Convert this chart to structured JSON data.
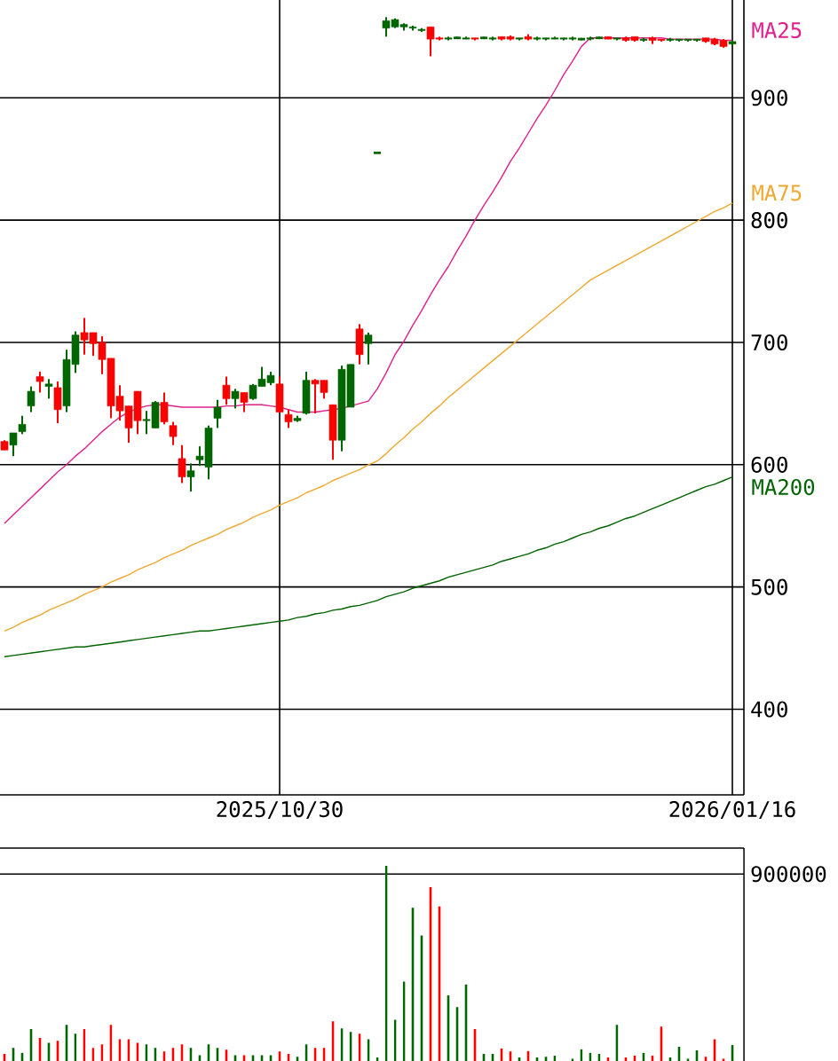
{
  "chart_data": [
    {
      "type": "candlestick",
      "categories": [
        null,
        null,
        null,
        null,
        null,
        null,
        null,
        null,
        null,
        null,
        null,
        null,
        null,
        null,
        null,
        null,
        null,
        null,
        null,
        null,
        null,
        null,
        null,
        null,
        null,
        null,
        null,
        null,
        null,
        null,
        null,
        "2025/10/30",
        null,
        null,
        null,
        null,
        null,
        null,
        null,
        null,
        null,
        null,
        null,
        null,
        null,
        null,
        null,
        null,
        null,
        null,
        null,
        null,
        null,
        null,
        null,
        null,
        null,
        null,
        null,
        null,
        null,
        null,
        null,
        null,
        null,
        null,
        null,
        null,
        null,
        null,
        null,
        null,
        null,
        null,
        null,
        null,
        null,
        null,
        null,
        null,
        null,
        null,
        "2026/01/16"
      ],
      "ohlc": [
        [
          619,
          620,
          612,
          612
        ],
        [
          616,
          626,
          607,
          626
        ],
        [
          627,
          640,
          625,
          633
        ],
        [
          648,
          664,
          643,
          660
        ],
        [
          672,
          676,
          659,
          668
        ],
        [
          664,
          670,
          654,
          666
        ],
        [
          663,
          668,
          634,
          645
        ],
        [
          648,
          694,
          643,
          686
        ],
        [
          682,
          709,
          675,
          706
        ],
        [
          708,
          720,
          690,
          702
        ],
        [
          708,
          708,
          689,
          699
        ],
        [
          700,
          705,
          674,
          686
        ],
        [
          687,
          687,
          638,
          648
        ],
        [
          656,
          665,
          636,
          644
        ],
        [
          648,
          648,
          618,
          630
        ],
        [
          660,
          660,
          625,
          636
        ],
        [
          636,
          644,
          625,
          637
        ],
        [
          630,
          652,
          630,
          651
        ],
        [
          651,
          659,
          633,
          635
        ],
        [
          632,
          635,
          616,
          623
        ],
        [
          605,
          616,
          585,
          590
        ],
        [
          590,
          601,
          578,
          595
        ],
        [
          604,
          615,
          599,
          607
        ],
        [
          598,
          632,
          588,
          630
        ],
        [
          638,
          653,
          630,
          647
        ],
        [
          665,
          672,
          649,
          654
        ],
        [
          654,
          662,
          646,
          660
        ],
        [
          659,
          659,
          643,
          651
        ],
        [
          654,
          666,
          653,
          665
        ],
        [
          664,
          680,
          664,
          670
        ],
        [
          667,
          676,
          665,
          673
        ],
        [
          666,
          672,
          643,
          643
        ],
        [
          641,
          645,
          630,
          635
        ],
        [
          636,
          640,
          635,
          638
        ],
        [
          642,
          676,
          641,
          669
        ],
        [
          669,
          670,
          642,
          666
        ],
        [
          669,
          669,
          654,
          659
        ],
        [
          649,
          649,
          604,
          620
        ],
        [
          620,
          681,
          611,
          678
        ],
        [
          647,
          682,
          647,
          682
        ],
        [
          711,
          715,
          682,
          690
        ],
        [
          699,
          708,
          682,
          706
        ],
        [
          855,
          855,
          855,
          855
        ],
        [
          957,
          966,
          950,
          963
        ],
        [
          958,
          965,
          957,
          964
        ],
        [
          958,
          961,
          955,
          960
        ],
        [
          957,
          959,
          955,
          958
        ],
        [
          955,
          957,
          954,
          956
        ],
        [
          958,
          958,
          934,
          948
        ],
        [
          949,
          950,
          947,
          948
        ],
        [
          948,
          950,
          947,
          949
        ],
        [
          949,
          950,
          948,
          949
        ],
        [
          948,
          950,
          948,
          949
        ],
        [
          949,
          949,
          947,
          948
        ],
        [
          949,
          950,
          948,
          949
        ],
        [
          948,
          950,
          947,
          949
        ],
        [
          950,
          950,
          947,
          948
        ],
        [
          950,
          951,
          947,
          948
        ],
        [
          948,
          949,
          947,
          949
        ],
        [
          950,
          952,
          947,
          948
        ],
        [
          948,
          950,
          947,
          949
        ],
        [
          948,
          949,
          947,
          949
        ],
        [
          948,
          950,
          948,
          949
        ],
        [
          948,
          949,
          947,
          949
        ],
        [
          948,
          950,
          947,
          949
        ],
        [
          948,
          949,
          947,
          948
        ],
        [
          948,
          950,
          947,
          949
        ],
        [
          949,
          950,
          948,
          949
        ],
        [
          950,
          950,
          948,
          948
        ],
        [
          948,
          949,
          947,
          949
        ],
        [
          949,
          950,
          946,
          947
        ],
        [
          950,
          950,
          946,
          947
        ],
        [
          947,
          949,
          946,
          948
        ],
        [
          949,
          950,
          944,
          947
        ],
        [
          948,
          948,
          946,
          947
        ],
        [
          947,
          949,
          946,
          948
        ],
        [
          947,
          948,
          946,
          948
        ],
        [
          947,
          948,
          946,
          948
        ],
        [
          947,
          948,
          946,
          948
        ],
        [
          949,
          949,
          945,
          946
        ],
        [
          948,
          949,
          943,
          944
        ],
        [
          947,
          948,
          941,
          942
        ],
        [
          944,
          947,
          943,
          946
        ]
      ],
      "colors": [
        "#ff0000",
        "#006600",
        "#006600",
        "#006600",
        "#ff0000",
        "#006600",
        "#ff0000",
        "#006600",
        "#006600",
        "#ff0000",
        "#ff0000",
        "#ff0000",
        "#ff0000",
        "#ff0000",
        "#ff0000",
        "#ff0000",
        "#006600",
        "#006600",
        "#ff0000",
        "#ff0000",
        "#ff0000",
        "#006600",
        "#006600",
        "#006600",
        "#006600",
        "#ff0000",
        "#006600",
        "#ff0000",
        "#006600",
        "#006600",
        "#006600",
        "#ff0000",
        "#ff0000",
        "#006600",
        "#006600",
        "#ff0000",
        "#ff0000",
        "#ff0000",
        "#006600",
        "#006600",
        "#ff0000",
        "#006600",
        "#006600",
        "#006600",
        "#006600",
        "#006600",
        "#006600",
        "#006600",
        "#ff0000",
        "#ff0000",
        "#006600",
        "#006600",
        "#006600",
        "#ff0000",
        "#006600",
        "#006600",
        "#ff0000",
        "#ff0000",
        "#006600",
        "#ff0000",
        "#006600",
        "#006600",
        "#006600",
        "#006600",
        "#006600",
        "#006600",
        "#006600",
        "#006600",
        "#ff0000",
        "#006600",
        "#ff0000",
        "#ff0000",
        "#006600",
        "#ff0000",
        "#ff0000",
        "#006600",
        "#006600",
        "#006600",
        "#006600",
        "#ff0000",
        "#ff0000",
        "#ff0000",
        "#006600"
      ],
      "series": [
        {
          "type": "line",
          "name": "MA25",
          "color": "#e0208c",
          "values": [
            552,
            559,
            566,
            573,
            580,
            587,
            594,
            600,
            607,
            613,
            620,
            627,
            633,
            639,
            643,
            646,
            648,
            649,
            649,
            648,
            647,
            647,
            647,
            647,
            647,
            648,
            648,
            649,
            649,
            649,
            648,
            647,
            645,
            643,
            643,
            643,
            644,
            645,
            646,
            648,
            650,
            652,
            662,
            675,
            690,
            701,
            714,
            726,
            739,
            751,
            762,
            775,
            787,
            800,
            812,
            823,
            835,
            848,
            859,
            871,
            883,
            894,
            906,
            919,
            930,
            942,
            949,
            949,
            949,
            949,
            949,
            949,
            949,
            949,
            949,
            948,
            948,
            948,
            948,
            948,
            948,
            947,
            947
          ]
        },
        {
          "type": "line",
          "name": "MA75",
          "color": "#f0a830",
          "values": [
            464,
            467,
            471,
            474,
            477,
            481,
            484,
            487,
            490,
            494,
            497,
            500,
            504,
            507,
            510,
            514,
            517,
            520,
            524,
            527,
            530,
            534,
            537,
            540,
            543,
            547,
            550,
            553,
            557,
            560,
            563,
            567,
            570,
            573,
            577,
            580,
            583,
            587,
            590,
            593,
            596,
            600,
            603,
            609,
            616,
            622,
            629,
            635,
            642,
            648,
            655,
            661,
            667,
            673,
            679,
            685,
            691,
            697,
            703,
            709,
            715,
            721,
            727,
            733,
            739,
            745,
            751,
            755,
            759,
            763,
            767,
            771,
            775,
            779,
            783,
            787,
            791,
            795,
            799,
            803,
            807,
            810,
            814
          ]
        },
        {
          "type": "line",
          "name": "MA200",
          "color": "#006400",
          "values": [
            443,
            444,
            445,
            446,
            447,
            448,
            449,
            450,
            451,
            451,
            452,
            453,
            454,
            455,
            456,
            457,
            458,
            459,
            460,
            461,
            462,
            463,
            464,
            464,
            465,
            466,
            467,
            468,
            469,
            470,
            471,
            472,
            473,
            475,
            476,
            478,
            479,
            481,
            482,
            484,
            485,
            487,
            489,
            492,
            494,
            496,
            499,
            501,
            503,
            505,
            508,
            510,
            512,
            514,
            516,
            518,
            521,
            523,
            525,
            527,
            530,
            532,
            535,
            537,
            540,
            543,
            545,
            548,
            550,
            553,
            556,
            558,
            561,
            564,
            567,
            570,
            573,
            576,
            579,
            582,
            584,
            587,
            590
          ]
        }
      ],
      "ylim": [
        330,
        980
      ],
      "yticks": [
        400,
        500,
        600,
        700,
        800,
        900
      ],
      "grid": true
    },
    {
      "type": "bar",
      "categories": [
        null,
        null,
        null,
        null,
        null,
        null,
        null,
        null,
        null,
        null,
        null,
        null,
        null,
        null,
        null,
        null,
        null,
        null,
        null,
        null,
        null,
        null,
        null,
        null,
        null,
        null,
        null,
        null,
        null,
        null,
        null,
        null,
        null,
        null,
        null,
        null,
        null,
        null,
        null,
        null,
        null,
        null,
        null,
        null,
        null,
        null,
        null,
        null,
        null,
        null,
        null,
        null,
        null,
        null,
        null,
        null,
        null,
        null,
        null,
        null,
        null,
        null,
        null,
        null,
        null,
        null,
        null,
        null,
        null,
        null,
        null,
        null,
        null,
        null,
        null,
        null,
        null,
        null,
        null,
        null,
        null,
        null,
        null
      ],
      "values": [
        34000,
        63000,
        40000,
        154000,
        111000,
        88000,
        97000,
        174000,
        131000,
        154000,
        63000,
        80000,
        174000,
        105000,
        105000,
        88000,
        80000,
        63000,
        46000,
        63000,
        80000,
        63000,
        28000,
        80000,
        63000,
        54000,
        28000,
        28000,
        28000,
        28000,
        28000,
        46000,
        34000,
        20000,
        80000,
        63000,
        63000,
        191000,
        157000,
        140000,
        131000,
        105000,
        17000,
        940000,
        199000,
        382000,
        738000,
        604000,
        838000,
        744000,
        316000,
        259000,
        368000,
        154000,
        34000,
        34000,
        60000,
        46000,
        17000,
        48000,
        17000,
        20000,
        26000,
        null,
        11000,
        57000,
        40000,
        34000,
        17000,
        174000,
        17000,
        26000,
        40000,
        26000,
        165000,
        17000,
        68000,
        11000,
        51000,
        20000,
        105000,
        11000,
        77000
      ],
      "colors": [
        "#ff0000",
        "#006600",
        "#006600",
        "#006600",
        "#ff0000",
        "#006600",
        "#ff0000",
        "#006600",
        "#006600",
        "#ff0000",
        "#ff0000",
        "#ff0000",
        "#ff0000",
        "#ff0000",
        "#ff0000",
        "#ff0000",
        "#006600",
        "#006600",
        "#ff0000",
        "#ff0000",
        "#ff0000",
        "#006600",
        "#006600",
        "#006600",
        "#006600",
        "#ff0000",
        "#006600",
        "#ff0000",
        "#006600",
        "#006600",
        "#006600",
        "#ff0000",
        "#ff0000",
        "#006600",
        "#006600",
        "#ff0000",
        "#ff0000",
        "#ff0000",
        "#006600",
        "#006600",
        "#ff0000",
        "#006600",
        "#006600",
        "#006600",
        "#006600",
        "#006600",
        "#006600",
        "#006600",
        "#ff0000",
        "#ff0000",
        "#006600",
        "#006600",
        "#006600",
        "#ff0000",
        "#006600",
        "#006600",
        "#ff0000",
        "#ff0000",
        "#006600",
        "#ff0000",
        "#006600",
        "#006600",
        "#006600",
        "#006600",
        "#006600",
        "#006600",
        "#006600",
        "#006600",
        "#ff0000",
        "#006600",
        "#ff0000",
        "#ff0000",
        "#006600",
        "#ff0000",
        "#ff0000",
        "#006600",
        "#006600",
        "#006600",
        "#006600",
        "#ff0000",
        "#ff0000",
        "#ff0000",
        "#006600"
      ],
      "ylim": [
        0,
        1025000
      ],
      "yticks": [
        900000
      ],
      "grid": "y",
      "tick_labels": "y"
    }
  ]
}
